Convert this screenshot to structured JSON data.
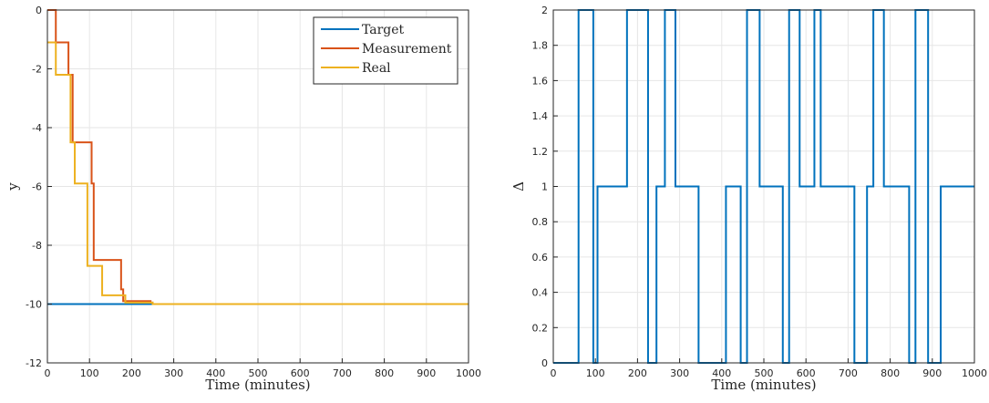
{
  "chart_data": [
    {
      "type": "line",
      "xlabel": "Time (minutes)",
      "ylabel": "y",
      "xlim": [
        0,
        1000
      ],
      "ylim": [
        -12,
        0
      ],
      "xticks": [
        0,
        100,
        200,
        300,
        400,
        500,
        600,
        700,
        800,
        900,
        1000
      ],
      "xtick_labels": [
        "0",
        "100",
        "200",
        "300",
        "400",
        "500",
        "600",
        "700",
        "800",
        "900",
        "1000"
      ],
      "yticks": [
        -12,
        -10,
        -8,
        -6,
        -4,
        -2,
        0
      ],
      "ytick_labels": [
        "-12",
        "-10",
        "-8",
        "-6",
        "-4",
        "-2",
        "0"
      ],
      "grid": true,
      "legend_position": "top-right",
      "series": [
        {
          "name": "Target",
          "color": "#0072BD",
          "step": true,
          "x": [
            0,
            1000
          ],
          "y": [
            -10,
            -10
          ]
        },
        {
          "name": "Measurement",
          "color": "#D95319",
          "step": true,
          "x": [
            0,
            20,
            50,
            60,
            105,
            110,
            130,
            175,
            180,
            245,
            250,
            1000
          ],
          "y": [
            0,
            -1.1,
            -2.2,
            -4.5,
            -5.9,
            -8.5,
            -8.5,
            -9.5,
            -9.9,
            -9.95,
            -10.0,
            -10.0
          ]
        },
        {
          "name": "Real",
          "color": "#EDB120",
          "step": true,
          "x": [
            0,
            2,
            20,
            55,
            65,
            95,
            130,
            160,
            185,
            250,
            1000
          ],
          "y": [
            -1.1,
            -1.1,
            -2.2,
            -4.5,
            -5.9,
            -8.7,
            -9.7,
            -9.7,
            -9.95,
            -10.0,
            -10.0
          ]
        }
      ]
    },
    {
      "type": "line",
      "xlabel": "Time (minutes)",
      "ylabel": "Δ",
      "xlim": [
        0,
        1000
      ],
      "ylim": [
        0,
        2
      ],
      "xticks": [
        0,
        100,
        200,
        300,
        400,
        500,
        600,
        700,
        800,
        900,
        1000
      ],
      "xtick_labels": [
        "0",
        "100",
        "200",
        "300",
        "400",
        "500",
        "600",
        "700",
        "800",
        "900",
        "1000"
      ],
      "yticks": [
        0,
        0.2,
        0.4,
        0.6,
        0.8,
        1,
        1.2,
        1.4,
        1.6,
        1.8,
        2
      ],
      "ytick_labels": [
        "0",
        "0.2",
        "0.4",
        "0.6",
        "0.8",
        "1",
        "1.2",
        "1.4",
        "1.6",
        "1.8",
        "2"
      ],
      "grid": true,
      "series": [
        {
          "color": "#0072BD",
          "step": true,
          "x": [
            0,
            60,
            95,
            105,
            175,
            225,
            245,
            265,
            290,
            345,
            410,
            445,
            460,
            490,
            545,
            560,
            585,
            620,
            635,
            715,
            745,
            760,
            785,
            845,
            860,
            890,
            920,
            1000
          ],
          "y": [
            0,
            2,
            0,
            1,
            2,
            0,
            1,
            2,
            1,
            0,
            1,
            0,
            2,
            1,
            0,
            2,
            1,
            2,
            1,
            0,
            1,
            2,
            1,
            0,
            2,
            0,
            1,
            1
          ]
        }
      ]
    }
  ]
}
